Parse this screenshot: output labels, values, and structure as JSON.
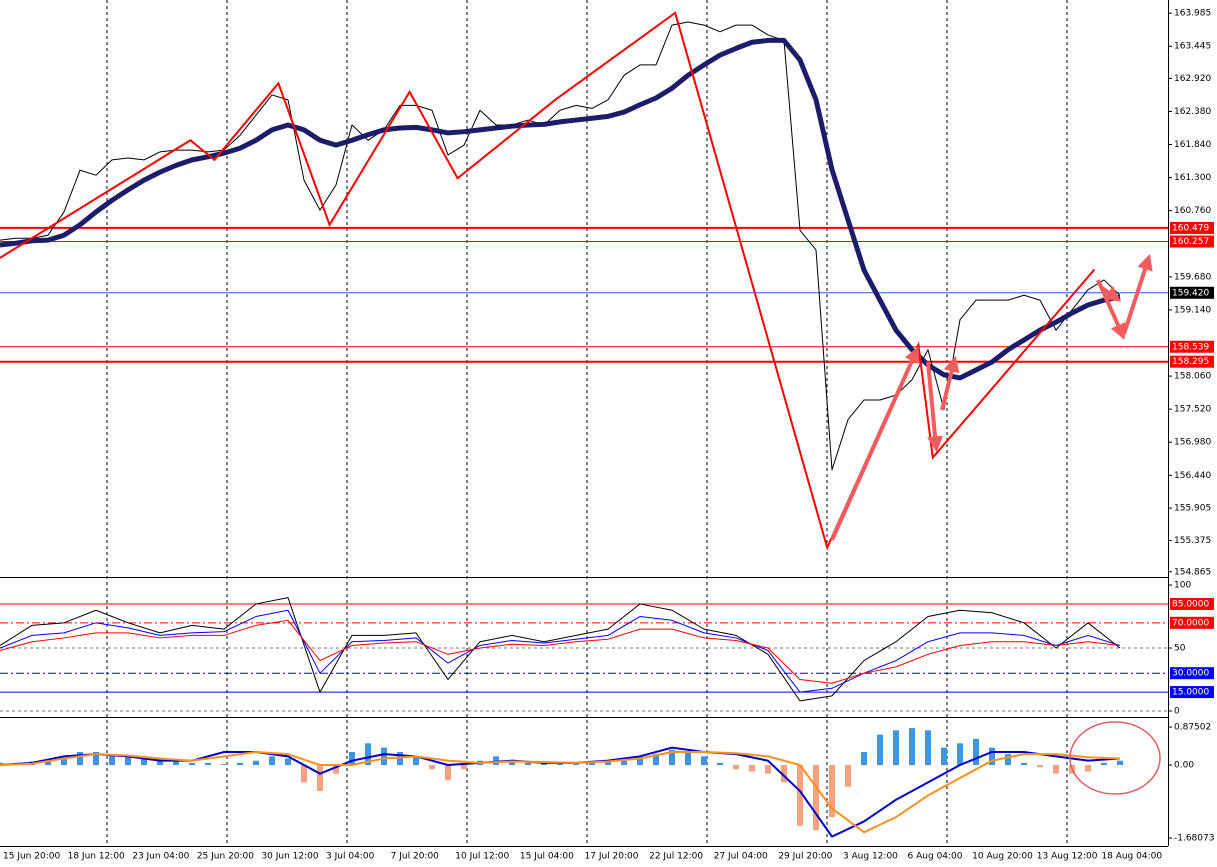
{
  "chart_data": [
    {
      "type": "line",
      "ylim": [
        154.78,
        164.2
      ],
      "yticks": [
        163.985,
        163.445,
        {
          "value": 162.92,
          "label": "162.920"
        },
        {
          "value": 162.38,
          "label": "162.380"
        },
        {
          "value": 161.84,
          "label": "161.840"
        },
        {
          "value": 161.3,
          "label": "161.300"
        },
        {
          "value": 160.76,
          "label": "160.760"
        },
        {
          "value": 159.68,
          "label": "159.680"
        },
        {
          "value": 159.14,
          "label": "159.140"
        },
        {
          "value": 158.06,
          "label": "158.060"
        },
        {
          "value": 157.52,
          "label": "157.520"
        },
        {
          "value": 156.98,
          "label": "156.980"
        },
        {
          "value": 156.44,
          "label": "156.440"
        },
        155.905,
        155.375,
        154.865
      ],
      "levels": [
        160.479,
        160.257,
        {
          "value": 159.42,
          "label": "159.420"
        },
        158.539,
        158.295
      ],
      "level_colors": [
        "#ff0000",
        "#ff0000",
        "#2d5bd8",
        "#ff0000",
        "#ff0000"
      ],
      "level_label_colors": [
        "#ff0000",
        "#ff0000",
        "#000000",
        "#ff0000",
        "#ff0000"
      ],
      "series": [
        {
          "color": "#000000",
          "values": [
            160.28,
            160.31,
            160.31,
            160.36,
            160.74,
            161.42,
            161.34,
            161.59,
            161.62,
            161.59,
            161.72,
            161.75,
            161.75,
            161.72,
            161.75,
            161.99,
            162.32,
            162.65,
            162.57,
            161.26,
            160.77,
            161.18,
            162.16,
            161.91,
            162.08,
            162.48,
            162.48,
            162.4,
            161.67,
            161.83,
            162.4,
            162.16,
            162.16,
            162.24,
            162.16,
            162.4,
            162.48,
            162.43,
            162.57,
            162.97,
            163.14,
            163.14,
            163.79,
            163.84,
            163.79,
            163.68,
            163.79,
            163.79,
            163.63,
            163.54,
            160.44,
            160.12,
            156.53,
            157.35,
            157.67,
            157.67,
            157.75,
            158.0,
            158.49,
            157.51,
            158.98,
            159.3,
            159.3,
            159.3,
            159.38,
            159.3,
            158.81,
            159.14,
            159.47,
            159.63,
            159.38
          ]
        },
        {
          "color": "#1c1c6b",
          "values": [
            160.2,
            160.23,
            160.27,
            160.28,
            160.36,
            160.53,
            160.74,
            160.93,
            161.1,
            161.26,
            161.39,
            161.5,
            161.59,
            161.64,
            161.7,
            161.78,
            161.91,
            162.08,
            162.16,
            162.08,
            161.91,
            161.83,
            161.91,
            162.0,
            162.08,
            162.11,
            162.12,
            162.08,
            162.03,
            162.05,
            162.08,
            162.11,
            162.14,
            162.16,
            162.17,
            162.21,
            162.24,
            162.27,
            162.3,
            162.37,
            162.49,
            162.6,
            162.76,
            162.97,
            163.14,
            163.3,
            163.41,
            163.51,
            163.54,
            163.54,
            163.22,
            162.57,
            161.43,
            160.61,
            159.79,
            159.3,
            158.81,
            158.49,
            158.24,
            158.08,
            158.03,
            158.16,
            158.29,
            158.49,
            158.65,
            158.81,
            158.94,
            159.09,
            159.22,
            159.3,
            159.35
          ]
        }
      ],
      "zigzag": {
        "color": "#ff0000",
        "x": [
          0,
          11.9,
          13.4,
          17.4,
          20.6,
          25.6,
          28.6,
          34.7,
          42.2,
          51.7,
          57.4,
          58.3,
          68.4
        ],
        "values": [
          159.99,
          161.91,
          161.59,
          162.84,
          160.53,
          162.7,
          161.29,
          162.57,
          163.99,
          155.26,
          158.57,
          156.73,
          159.8
        ]
      }
    },
    {
      "type": "line",
      "ylim": [
        -4,
        105.6
      ],
      "yticks": [
        100,
        50,
        0
      ],
      "levels": [
        {
          "value": 85,
          "label": "85.0000"
        },
        {
          "value": 70,
          "label": "70.0000"
        },
        {
          "value": 30,
          "label": "30.0000"
        },
        {
          "value": 15,
          "label": "15.0000"
        }
      ],
      "level_colors": [
        "#ff0000",
        "#ff0000",
        "#0000ff",
        "#0000ff"
      ],
      "level_dash": [
        false,
        true,
        true,
        false
      ],
      "series": [
        {
          "color": "#000000",
          "values": [
            52,
            68,
            70,
            80,
            70,
            62,
            68,
            65,
            85,
            90,
            15,
            60,
            60,
            62,
            25,
            55,
            60,
            55,
            60,
            65,
            85,
            80,
            65,
            60,
            45,
            8,
            12,
            40,
            55,
            75,
            80,
            78,
            70,
            50,
            70,
            50
          ]
        },
        {
          "color": "#0000ff",
          "values": [
            50,
            60,
            62,
            70,
            66,
            60,
            62,
            63,
            75,
            80,
            30,
            55,
            56,
            58,
            38,
            52,
            56,
            54,
            57,
            60,
            75,
            72,
            62,
            58,
            48,
            15,
            18,
            30,
            40,
            55,
            62,
            62,
            60,
            52,
            60,
            52
          ]
        },
        {
          "color": "#ff0000",
          "values": [
            48,
            55,
            58,
            62,
            62,
            58,
            60,
            60,
            68,
            72,
            40,
            52,
            54,
            55,
            45,
            50,
            53,
            52,
            55,
            57,
            65,
            65,
            58,
            56,
            50,
            25,
            22,
            30,
            35,
            45,
            52,
            55,
            55,
            52,
            55,
            52
          ]
        }
      ]
    },
    {
      "type": "macd",
      "ylim": [
        -1.866,
        1.037
      ],
      "yticks": [
        0.87502,
        {
          "value": 0,
          "label": "0.00"
        },
        -1.68073
      ],
      "pos_color": "#3d95e0",
      "neg_color": "#f5a07e",
      "histogram": [
        0.05,
        0.05,
        0.08,
        0.1,
        0.2,
        0.3,
        0.3,
        0.25,
        0.2,
        0.15,
        0.1,
        0.1,
        0.05,
        0.05,
        0.02,
        0.05,
        0.1,
        0.2,
        0.15,
        -0.4,
        -0.6,
        -0.2,
        0.3,
        0.5,
        0.4,
        0.3,
        0.2,
        -0.1,
        -0.35,
        -0.1,
        0.1,
        0.2,
        0.1,
        0.05,
        0.05,
        0.05,
        0.05,
        0.05,
        0.08,
        0.1,
        0.2,
        0.25,
        0.35,
        0.3,
        0.2,
        0.05,
        -0.1,
        -0.15,
        -0.2,
        -0.4,
        -1.4,
        -1.5,
        -1.2,
        -0.5,
        0.3,
        0.7,
        0.8,
        0.85,
        0.8,
        0.4,
        0.5,
        0.6,
        0.4,
        0.25,
        0.05,
        -0.05,
        -0.2,
        -0.2,
        -0.15,
        0.05,
        0.1
      ],
      "series": [
        {
          "color": "#0000cc",
          "values": [
            0,
            0.05,
            0.2,
            0.25,
            0.2,
            0.1,
            0.1,
            0.3,
            0.3,
            0.2,
            -0.2,
            0.1,
            0.25,
            0.2,
            0,
            0.05,
            0.1,
            0.05,
            0.05,
            0.1,
            0.2,
            0.4,
            0.3,
            0.25,
            0.1,
            -0.6,
            -1.65,
            -1.3,
            -0.8,
            -0.4,
            0,
            0.3,
            0.3,
            0.2,
            0.1,
            0.15
          ]
        },
        {
          "color": "#ff9020",
          "values": [
            0,
            0.03,
            0.15,
            0.25,
            0.22,
            0.15,
            0.1,
            0.2,
            0.3,
            0.25,
            0,
            0,
            0.15,
            0.2,
            0.1,
            0.05,
            0.08,
            0.07,
            0.05,
            0.08,
            0.15,
            0.3,
            0.3,
            0.27,
            0.2,
            0,
            -1,
            -1.55,
            -1.2,
            -0.7,
            -0.3,
            0.1,
            0.25,
            0.25,
            0.18,
            0.15
          ]
        }
      ],
      "x_labels": [
        "15 Jun 20:00",
        "18 Jun 12:00",
        "23 Jun 04:00",
        "25 Jun 20:00",
        "30 Jun 12:00",
        "3 Jul 04:00",
        "7 Jul 20:00",
        "10 Jul 12:00",
        "15 Jul 04:00",
        "17 Jul 20:00",
        "22 Jul 12:00",
        "27 Jul 04:00",
        "29 Jul 20:00",
        "3 Aug 12:00",
        "6 Aug 04:00",
        "10 Aug 20:00",
        "13 Aug 12:00",
        "18 Aug 04:00"
      ]
    }
  ]
}
